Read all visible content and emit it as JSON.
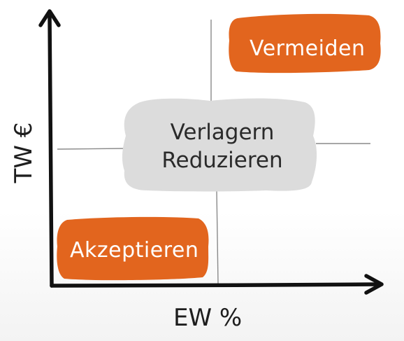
{
  "diagram": {
    "axes": {
      "x_label": "EW %",
      "y_label": "TW €"
    },
    "boxes": [
      {
        "id": "vermeiden",
        "label": "Vermeiden",
        "color": "#e2651e"
      },
      {
        "id": "center",
        "lines": [
          "Verlagern",
          "Reduzieren"
        ],
        "color": "#dcdcdc"
      },
      {
        "id": "akzeptieren",
        "label": "Akzeptieren",
        "color": "#e2651e"
      }
    ],
    "colors": {
      "axis": "#111111",
      "grid": "#8a8a8a",
      "orange": "#e2651e",
      "cloud": "#dcdcdc"
    }
  }
}
